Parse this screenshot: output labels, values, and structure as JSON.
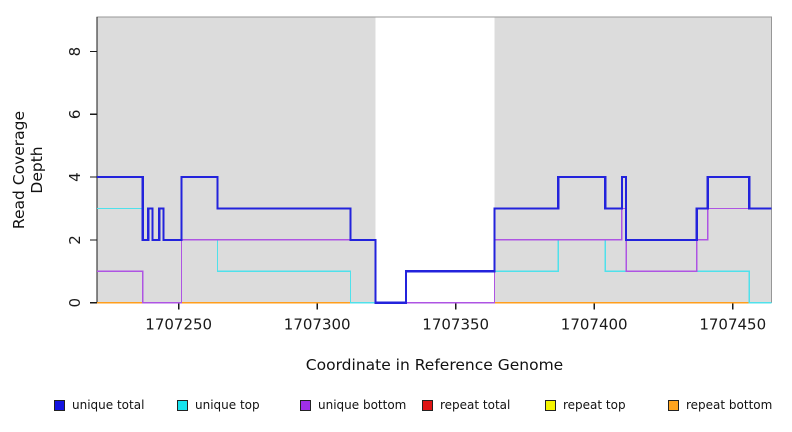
{
  "chart_data": {
    "type": "line",
    "subtype": "step-coverage",
    "title": "",
    "xlabel": "Coordinate in Reference Genome",
    "ylabel": "Read Coverage Depth",
    "xlim": [
      1707220.5,
      1707464
    ],
    "ylim": [
      0,
      9.1
    ],
    "xticks": [
      1707250,
      1707300,
      1707350,
      1707400,
      1707450
    ],
    "yticks": [
      0,
      2,
      4,
      6,
      8
    ],
    "grid": false,
    "legend_position": "bottom",
    "shade_color": "#DCDCDC",
    "box_color": "#979797",
    "axis_color": "#1a1a1a",
    "shaded_regions": [
      [
        1707220.5,
        1707321
      ],
      [
        1707364,
        1707464
      ]
    ],
    "series": [
      {
        "name": "unique total",
        "color": "#2323DC",
        "width": 2.2,
        "steps": [
          [
            1707220.5,
            4
          ],
          [
            1707237,
            2
          ],
          [
            1707239,
            3
          ],
          [
            1707240.5,
            2
          ],
          [
            1707243,
            3
          ],
          [
            1707244.5,
            2
          ],
          [
            1707251,
            4
          ],
          [
            1707264,
            3
          ],
          [
            1707312,
            2
          ],
          [
            1707321,
            0
          ],
          [
            1707332,
            1
          ],
          [
            1707364,
            3
          ],
          [
            1707387,
            4
          ],
          [
            1707404,
            3
          ],
          [
            1707410,
            4
          ],
          [
            1707411.5,
            2
          ],
          [
            1707437,
            3
          ],
          [
            1707441,
            4
          ],
          [
            1707456,
            3
          ]
        ]
      },
      {
        "name": "unique top",
        "color": "#4FE1EB",
        "width": 1.4,
        "steps": [
          [
            1707220.5,
            3
          ],
          [
            1707237,
            2
          ],
          [
            1707239,
            3
          ],
          [
            1707240.5,
            2
          ],
          [
            1707243,
            3
          ],
          [
            1707244.5,
            2
          ],
          [
            1707264,
            1
          ],
          [
            1707312,
            0
          ],
          [
            1707332,
            1
          ],
          [
            1707387,
            2
          ],
          [
            1707404,
            1
          ],
          [
            1707456,
            0
          ]
        ]
      },
      {
        "name": "unique bottom",
        "color": "#AE54E3",
        "width": 1.4,
        "steps": [
          [
            1707220.5,
            1
          ],
          [
            1707237,
            0
          ],
          [
            1707251,
            2
          ],
          [
            1707321,
            0
          ],
          [
            1707364,
            2
          ],
          [
            1707410,
            3
          ],
          [
            1707411.5,
            1
          ],
          [
            1707437,
            2
          ],
          [
            1707441,
            3
          ]
        ]
      },
      {
        "name": "repeat total",
        "color": "#DE2121",
        "width": 1.4,
        "steps": [
          [
            1707220.5,
            0
          ]
        ]
      },
      {
        "name": "repeat top",
        "color": "#F2F20C",
        "width": 1.4,
        "steps": [
          [
            1707220.5,
            0
          ]
        ]
      },
      {
        "name": "repeat bottom",
        "color": "#FF9E1C",
        "width": 1.6,
        "steps": [
          [
            1707220.5,
            0
          ]
        ]
      }
    ],
    "draw_order": [
      3,
      4,
      5,
      1,
      2,
      0
    ],
    "legend": [
      {
        "label": "unique total",
        "color": "#1414E0"
      },
      {
        "label": "unique top",
        "color": "#17E3EE"
      },
      {
        "label": "unique bottom",
        "color": "#A02FE8"
      },
      {
        "label": "repeat total",
        "color": "#DE1414"
      },
      {
        "label": "repeat top",
        "color": "#F5F500"
      },
      {
        "label": "repeat bottom",
        "color": "#FFA41E"
      }
    ]
  }
}
